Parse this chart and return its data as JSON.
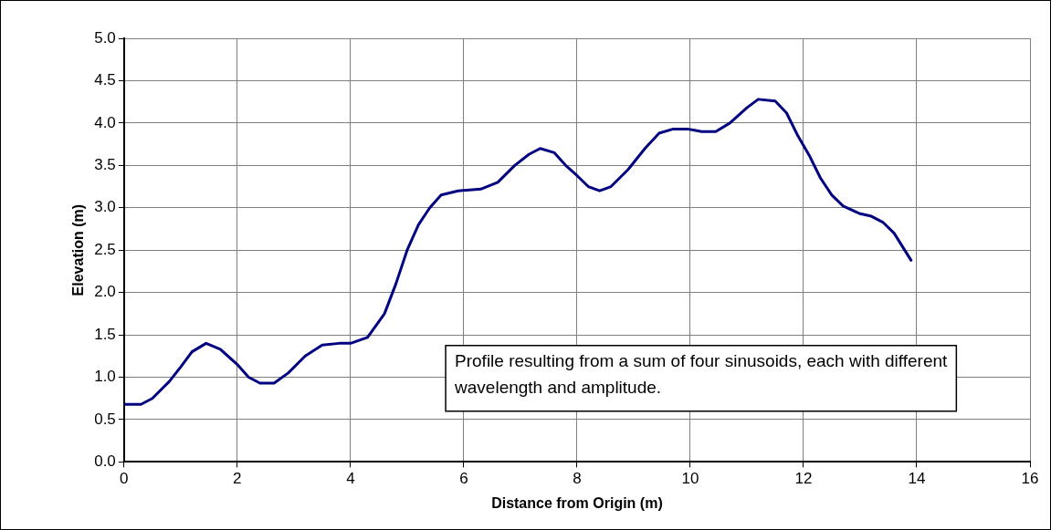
{
  "chart_data": {
    "type": "line",
    "xlabel": "Distance from Origin (m)",
    "ylabel": "Elevation (m)",
    "annotations": [
      "Profile resulting from a sum of four sinusoids, each with different wavelength and amplitude."
    ],
    "xlim": [
      0,
      16
    ],
    "xticks": [
      0,
      2,
      4,
      6,
      8,
      10,
      12,
      14,
      16
    ],
    "ylim": [
      0,
      5
    ],
    "yticks": [
      {
        "value": 0,
        "label": "0.0"
      },
      {
        "value": 0.5,
        "label": "0.5"
      },
      {
        "value": 1,
        "label": "1.0"
      },
      {
        "value": 1.5,
        "label": "1.5"
      },
      {
        "value": 2,
        "label": "2.0"
      },
      {
        "value": 2.5,
        "label": "2.5"
      },
      {
        "value": 3,
        "label": "3.0"
      },
      {
        "value": 3.5,
        "label": "3.5"
      },
      {
        "value": 4,
        "label": "4.0"
      },
      {
        "value": 4.5,
        "label": "4.5"
      },
      {
        "value": 5,
        "label": "5.0"
      }
    ],
    "grid": true,
    "legend": false,
    "marker": "none",
    "line_style": "solid",
    "series": [
      {
        "color": "#000080",
        "x": [
          0,
          0.3,
          0.5,
          0.8,
          1.0,
          1.2,
          1.45,
          1.7,
          2.0,
          2.2,
          2.4,
          2.65,
          2.9,
          3.2,
          3.5,
          3.8,
          4.0,
          4.3,
          4.6,
          4.8,
          5.0,
          5.2,
          5.4,
          5.6,
          5.9,
          6.3,
          6.6,
          6.9,
          7.15,
          7.35,
          7.6,
          7.8,
          8.0,
          8.2,
          8.4,
          8.6,
          8.9,
          9.2,
          9.45,
          9.7,
          9.95,
          10.2,
          10.45,
          10.7,
          11.0,
          11.2,
          11.5,
          11.7,
          11.9,
          12.1,
          12.3,
          12.5,
          12.7,
          13.0,
          13.2,
          13.4,
          13.6,
          13.9
        ],
        "values": [
          0.68,
          0.68,
          0.75,
          0.95,
          1.12,
          1.3,
          1.4,
          1.33,
          1.15,
          1.0,
          0.93,
          0.93,
          1.05,
          1.25,
          1.38,
          1.4,
          1.4,
          1.47,
          1.75,
          2.1,
          2.5,
          2.8,
          3.0,
          3.15,
          3.2,
          3.22,
          3.3,
          3.5,
          3.63,
          3.7,
          3.65,
          3.5,
          3.38,
          3.25,
          3.2,
          3.25,
          3.45,
          3.7,
          3.88,
          3.93,
          3.93,
          3.9,
          3.9,
          4.0,
          4.18,
          4.28,
          4.26,
          4.12,
          3.85,
          3.62,
          3.35,
          3.15,
          3.02,
          2.93,
          2.9,
          2.83,
          2.7,
          2.38
        ]
      }
    ]
  }
}
